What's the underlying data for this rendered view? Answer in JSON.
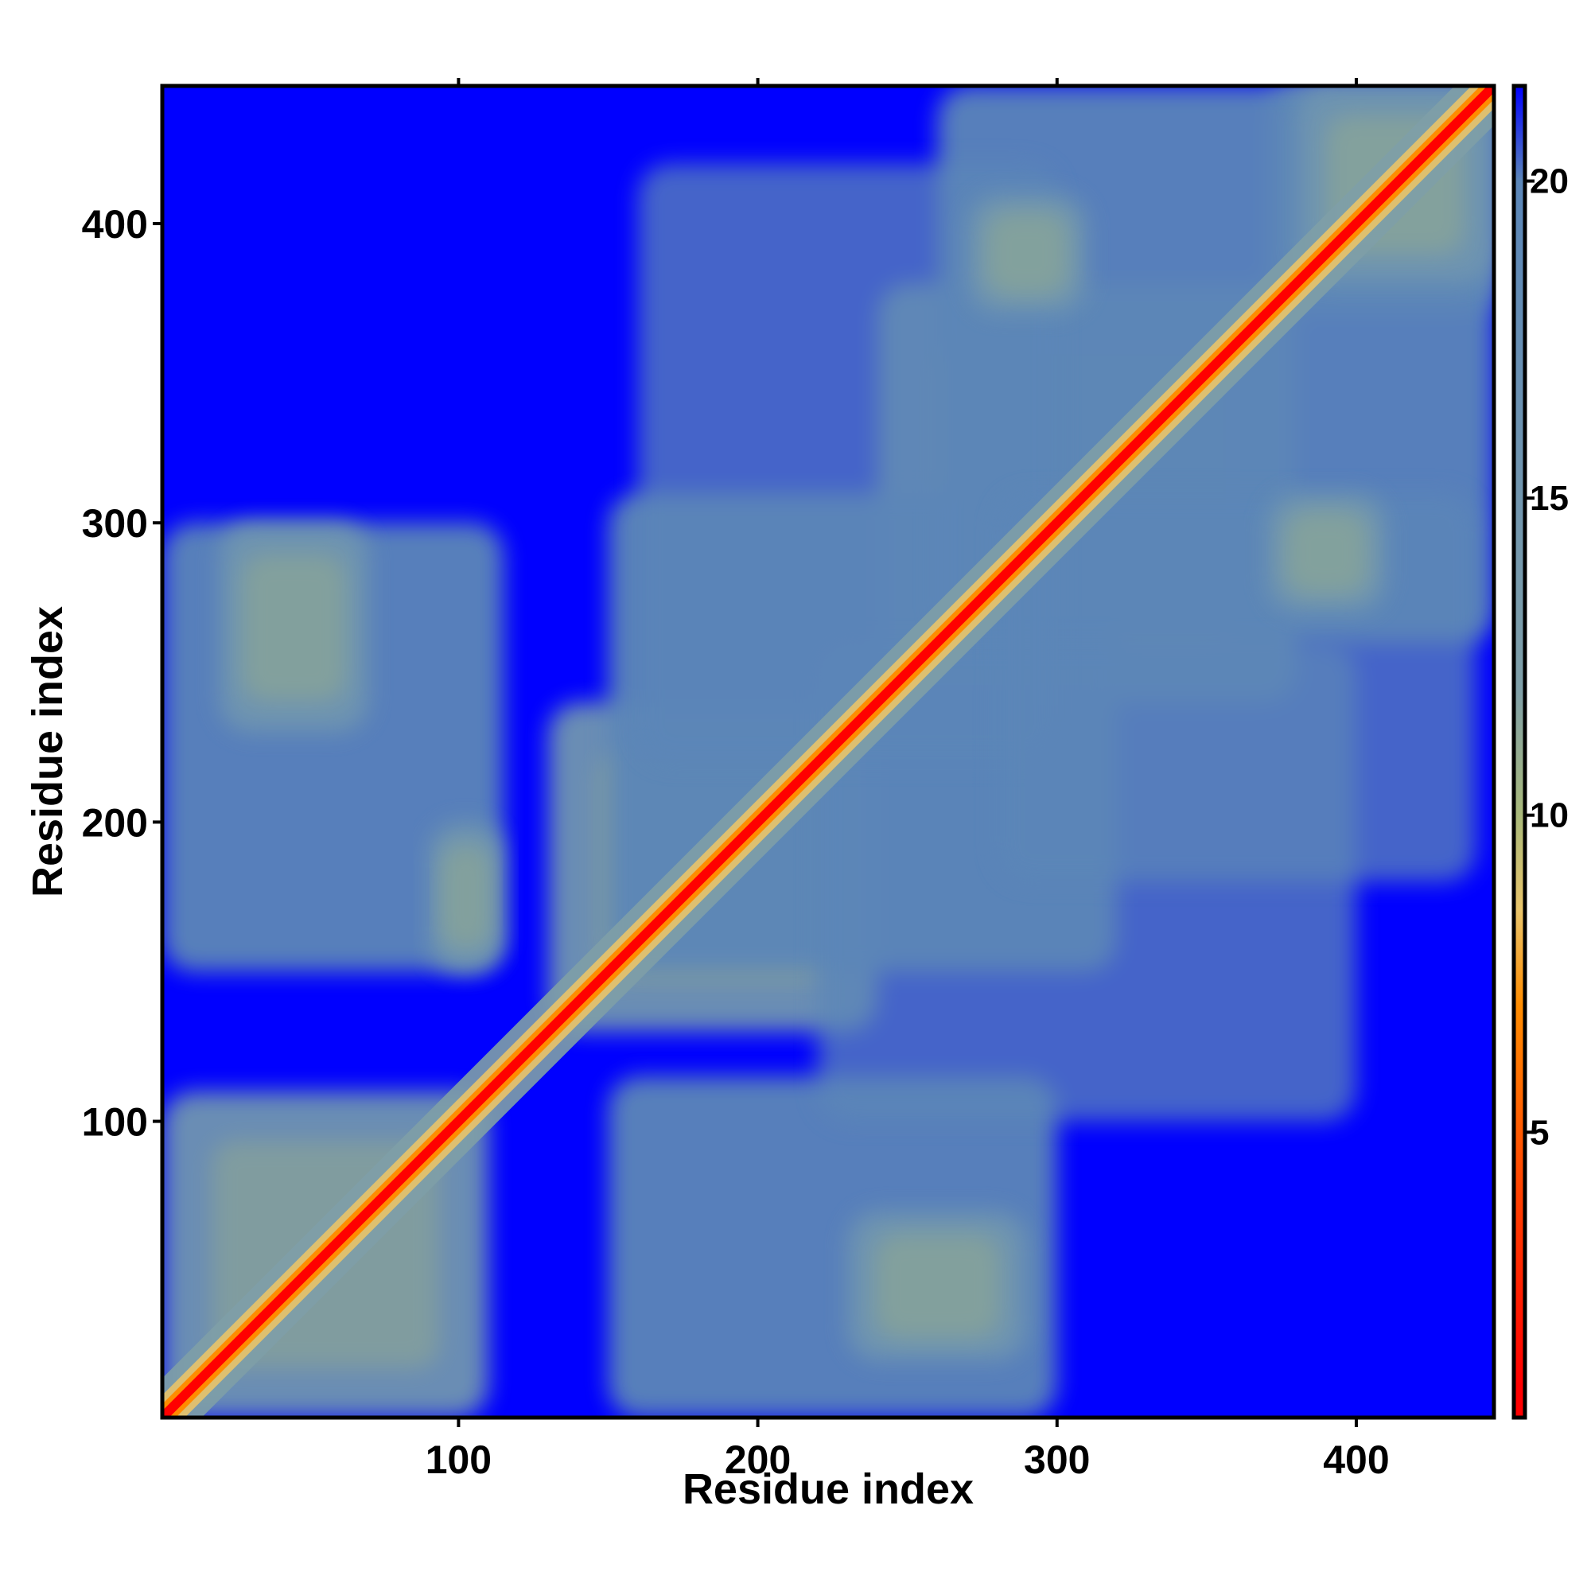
{
  "chart_data": {
    "type": "heatmap",
    "title": "",
    "xlabel": "Residue index",
    "ylabel": "Residue index",
    "xlim": [
      1,
      446
    ],
    "ylim": [
      1,
      446
    ],
    "xticks": [
      100,
      200,
      300,
      400
    ],
    "yticks": [
      100,
      200,
      300,
      400
    ],
    "colorbar": {
      "range": [
        0.5,
        21.5
      ],
      "ticks": [
        5,
        10,
        15,
        20
      ],
      "colors": [
        {
          "value": 1,
          "color": "#ff0000"
        },
        {
          "value": 4,
          "color": "#ff4000"
        },
        {
          "value": 7,
          "color": "#ff8c00"
        },
        {
          "value": 8.5,
          "color": "#e9c46a"
        },
        {
          "value": 10,
          "color": "#a9b97a"
        },
        {
          "value": 12,
          "color": "#7f9fa8"
        },
        {
          "value": 20,
          "color": "#5b86b8"
        },
        {
          "value": 21.5,
          "color": "#0000ff"
        }
      ]
    },
    "background_color": "#0000ff",
    "contact_regions": [
      {
        "x": [
          1,
          110
        ],
        "y": [
          1,
          110
        ],
        "level": "near"
      },
      {
        "x": [
          130,
          240
        ],
        "y": [
          130,
          240
        ],
        "level": "near"
      },
      {
        "x": [
          240,
          380
        ],
        "y": [
          240,
          380
        ],
        "level": "near"
      },
      {
        "x": [
          370,
          446
        ],
        "y": [
          370,
          446
        ],
        "level": "near"
      },
      {
        "x": [
          1,
          115
        ],
        "y": [
          150,
          300
        ],
        "level": "mid"
      },
      {
        "x": [
          150,
          300
        ],
        "y": [
          1,
          115
        ],
        "level": "mid"
      },
      {
        "x": [
          150,
          320
        ],
        "y": [
          150,
          310
        ],
        "level": "mid"
      },
      {
        "x": [
          260,
          446
        ],
        "y": [
          260,
          446
        ],
        "level": "mid"
      },
      {
        "x": [
          220,
          400
        ],
        "y": [
          100,
          260
        ],
        "level": "far"
      },
      {
        "x": [
          160,
          300
        ],
        "y": [
          220,
          420
        ],
        "level": "far"
      },
      {
        "x": [
          280,
          440
        ],
        "y": [
          180,
          310
        ],
        "level": "far"
      },
      {
        "x": [
          230,
          290
        ],
        "y": [
          20,
          70
        ],
        "level": "near"
      },
      {
        "x": [
          90,
          115
        ],
        "y": [
          150,
          200
        ],
        "level": "near"
      },
      {
        "x": [
          20,
          70
        ],
        "y": [
          230,
          300
        ],
        "level": "near"
      },
      {
        "x": [
          270,
          310
        ],
        "y": [
          370,
          410
        ],
        "level": "near"
      },
      {
        "x": [
          370,
          410
        ],
        "y": [
          270,
          310
        ],
        "level": "near"
      },
      {
        "x": [
          380,
          446
        ],
        "y": [
          380,
          446
        ],
        "level": "near"
      }
    ]
  }
}
